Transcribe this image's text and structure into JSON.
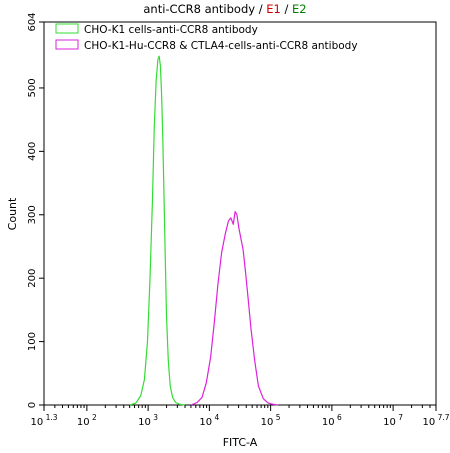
{
  "chart_data": {
    "type": "line",
    "title": {
      "prefix": "anti-CCR8 antibody / ",
      "e1": "E1",
      "separator": " / ",
      "e2": "E2",
      "colors": {
        "prefix": "#000000",
        "e1": "#cc0000",
        "e2": "#008000"
      }
    },
    "xlabel": "FITC-A",
    "ylabel": "Count",
    "xscale": "log",
    "xlim": [
      1.3,
      7.7
    ],
    "ylim": [
      0,
      604
    ],
    "x_ticks": [
      {
        "value": 1.3,
        "base": "10",
        "exp": "1.3"
      },
      {
        "value": 2,
        "base": "10",
        "exp": "2"
      },
      {
        "value": 3,
        "base": "10",
        "exp": "3"
      },
      {
        "value": 4,
        "base": "10",
        "exp": "4"
      },
      {
        "value": 5,
        "base": "10",
        "exp": "5"
      },
      {
        "value": 6,
        "base": "10",
        "exp": "6"
      },
      {
        "value": 7,
        "base": "10",
        "exp": "7"
      },
      {
        "value": 7.7,
        "base": "10",
        "exp": "7.7"
      }
    ],
    "y_ticks": [
      0,
      100,
      200,
      300,
      400,
      500,
      604
    ],
    "legend_placement": "top-left",
    "series": [
      {
        "name": "CHO-K1 cells-anti-CCR8 antibody",
        "color": "#33dd33",
        "x_log10": [
          2.7,
          2.8,
          2.88,
          2.94,
          2.99,
          3.03,
          3.07,
          3.1,
          3.13,
          3.16,
          3.18,
          3.2,
          3.22,
          3.24,
          3.26,
          3.28,
          3.3,
          3.33,
          3.36,
          3.4,
          3.45,
          3.52,
          3.6
        ],
        "y": [
          0,
          3,
          15,
          40,
          100,
          200,
          320,
          440,
          510,
          545,
          550,
          535,
          490,
          420,
          330,
          230,
          140,
          70,
          30,
          12,
          4,
          1,
          0
        ]
      },
      {
        "name": "CHO-K1-Hu-CCR8 & CTLA4-cells-anti-CCR8 antibody",
        "color": "#dd22dd",
        "x_log10": [
          3.7,
          3.8,
          3.88,
          3.95,
          4.02,
          4.08,
          4.14,
          4.2,
          4.26,
          4.31,
          4.35,
          4.39,
          4.42,
          4.45,
          4.48,
          4.51,
          4.55,
          4.59,
          4.63,
          4.68,
          4.74,
          4.8,
          4.88,
          4.96,
          5.05,
          5.12
        ],
        "y": [
          0,
          4,
          12,
          35,
          75,
          130,
          190,
          240,
          270,
          290,
          295,
          285,
          305,
          300,
          280,
          265,
          245,
          210,
          170,
          120,
          70,
          30,
          10,
          3,
          1,
          0
        ]
      }
    ]
  }
}
